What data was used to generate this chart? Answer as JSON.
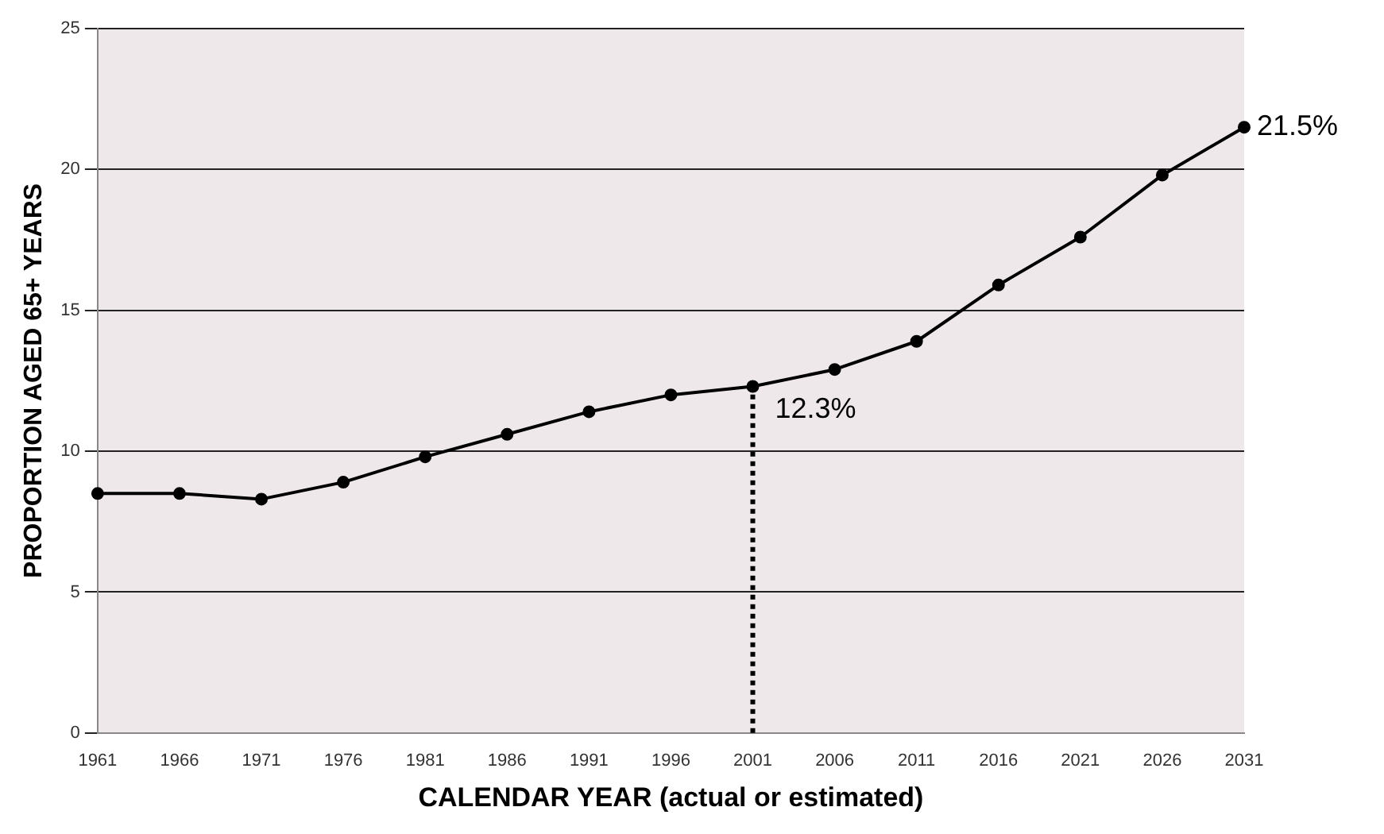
{
  "chart_data": {
    "type": "line",
    "xlabel": "CALENDAR YEAR (actual or estimated)",
    "ylabel": "PROPORTION AGED 65+ YEARS",
    "categories": [
      "1961",
      "1966",
      "1971",
      "1976",
      "1981",
      "1986",
      "1991",
      "1996",
      "2001",
      "2006",
      "2011",
      "2016",
      "2021",
      "2026",
      "2031"
    ],
    "series": [
      {
        "color": "#000000",
        "values": [
          8.5,
          8.5,
          8.3,
          8.9,
          9.8,
          10.6,
          11.4,
          12.0,
          12.3,
          12.9,
          13.9,
          15.9,
          17.6,
          19.8,
          21.5
        ]
      }
    ],
    "ylim": [
      0,
      25
    ],
    "yticks": [
      0,
      5,
      10,
      15,
      20,
      25
    ],
    "grid": "y",
    "legend": false,
    "marker": "circle",
    "line_style": "solid",
    "ref_lines": [
      {
        "axis": "x",
        "value": "2001",
        "line_style": "dotted",
        "color": "#000000"
      }
    ],
    "annotations": [
      {
        "text": "12.3%",
        "x": "2001",
        "y": 12.3
      },
      {
        "text": "21.5%",
        "x": "2031",
        "y": 21.5
      }
    ]
  }
}
